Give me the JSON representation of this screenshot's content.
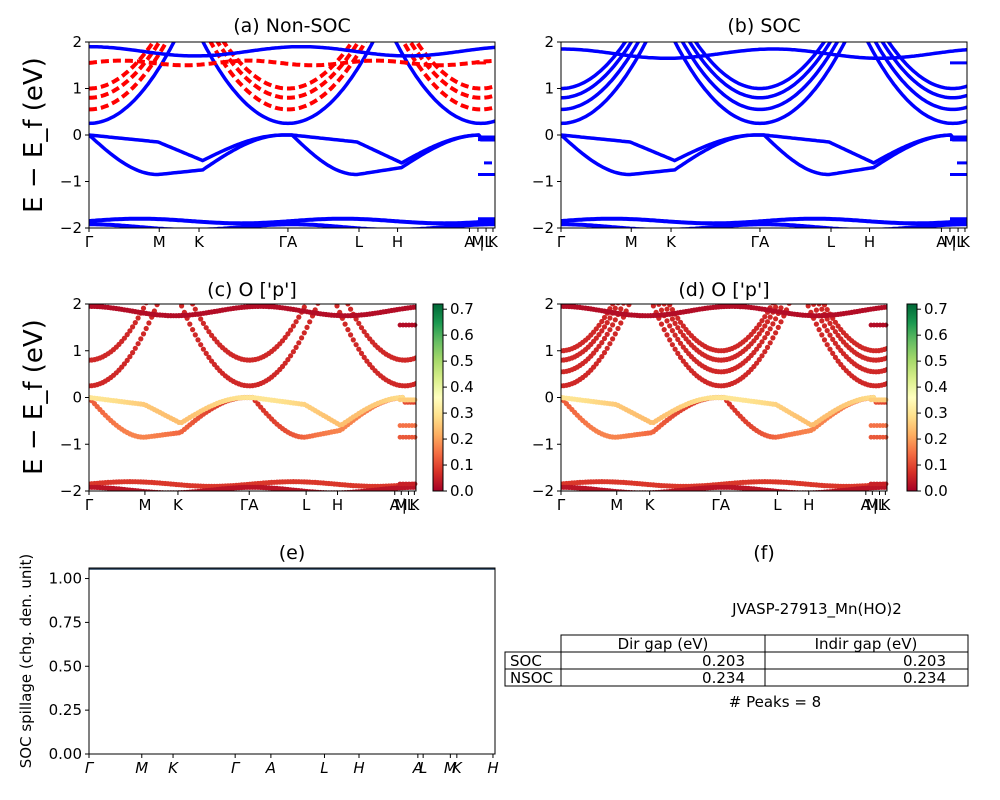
{
  "chart_data": [
    {
      "type": "line",
      "panel": "a",
      "title": "(a) Non-SOC",
      "ylabel": "E − E_f (eV)",
      "ylim": [
        -2,
        2
      ],
      "yticks": [
        -2,
        -1,
        0,
        1,
        2
      ],
      "kpath_labels": [
        "Γ",
        "M",
        "K",
        "ΓA",
        "L",
        "H",
        "A",
        "M",
        "|L",
        "K"
      ],
      "series": [
        {
          "color": "#0000ff",
          "style": "solid",
          "bands": "valence",
          "x": [
            0,
            0.17,
            0.28,
            0.5,
            0.67,
            0.78,
            0.97
          ],
          "y_top_valence": [
            0.0,
            -0.15,
            -0.55,
            0.0,
            -0.15,
            -0.55,
            0.0
          ],
          "y_low_valence": [
            0.0,
            -0.85,
            -0.75,
            0.0,
            -0.85,
            -0.75,
            0.0
          ]
        },
        {
          "color": "#ff0000",
          "style": "dashed",
          "bands": "conduction",
          "y_at_gamma": [
            0.55,
            0.8,
            1.0
          ]
        }
      ]
    },
    {
      "type": "line",
      "panel": "b",
      "title": "(b) SOC",
      "ylim": [
        -2,
        2
      ],
      "yticks": [
        -2,
        -1,
        0,
        1,
        2
      ],
      "kpath_labels": [
        "Γ",
        "M",
        "K",
        "ΓA",
        "L",
        "H",
        "A",
        "M",
        "|L",
        "K"
      ],
      "series": [
        {
          "color": "#0000ff",
          "style": "solid",
          "y_at_gamma": [
            0.25,
            0.55,
            0.8,
            1.0
          ]
        }
      ]
    },
    {
      "type": "scatter",
      "panel": "c",
      "title": "(c)  O ['p']",
      "ylabel": "E − E_f (eV)",
      "ylim": [
        -2,
        2
      ],
      "yticks": [
        -2,
        -1,
        0,
        1,
        2
      ],
      "kpath_labels": [
        "Γ",
        "M",
        "K",
        "ΓA",
        "L",
        "H",
        "A",
        "M",
        "|L",
        "K"
      ],
      "colorbar": {
        "min": 0.0,
        "max": 0.72,
        "ticks": [
          "0.0",
          "0.1",
          "0.2",
          "0.3",
          "0.4",
          "0.5",
          "0.6",
          "0.7"
        ],
        "colormap": "RdYlGn"
      }
    },
    {
      "type": "scatter",
      "panel": "d",
      "title": "(d) O ['p']",
      "ylim": [
        -2,
        2
      ],
      "yticks": [
        -2,
        -1,
        0,
        1,
        2
      ],
      "kpath_labels": [
        "Γ",
        "M",
        "K",
        "ΓA",
        "L",
        "H",
        "A",
        "M",
        "|L",
        "K"
      ],
      "colorbar": {
        "min": 0.0,
        "max": 0.72,
        "ticks": [
          "0.0",
          "0.1",
          "0.2",
          "0.3",
          "0.4",
          "0.5",
          "0.6",
          "0.7"
        ],
        "colormap": "RdYlGn"
      }
    },
    {
      "type": "line",
      "panel": "e",
      "title": "(e)",
      "ylabel": "SOC spillage (chg. den. unit)",
      "ylim": [
        0,
        1.06
      ],
      "yticks": [
        "0.00",
        "0.25",
        "0.50",
        "0.75",
        "1.00"
      ],
      "kpath_labels": [
        "Γ",
        "M",
        "K",
        "Γ",
        "A",
        "L",
        "H",
        "A",
        "L",
        "M",
        "K",
        "H"
      ],
      "series": [
        {
          "color": "#1f3b5a",
          "value": 1.06
        }
      ]
    },
    {
      "type": "table",
      "panel": "f",
      "title": "(f)",
      "material": "JVASP-27913_Mn(HO)2",
      "columns": [
        "Dir gap (eV)",
        "Indir gap (eV)"
      ],
      "rows": [
        {
          "label": "SOC",
          "values": [
            "0.203",
            "0.203"
          ]
        },
        {
          "label": "NSOC",
          "values": [
            "0.234",
            "0.234"
          ]
        }
      ],
      "footer": "# Peaks = 8"
    }
  ]
}
